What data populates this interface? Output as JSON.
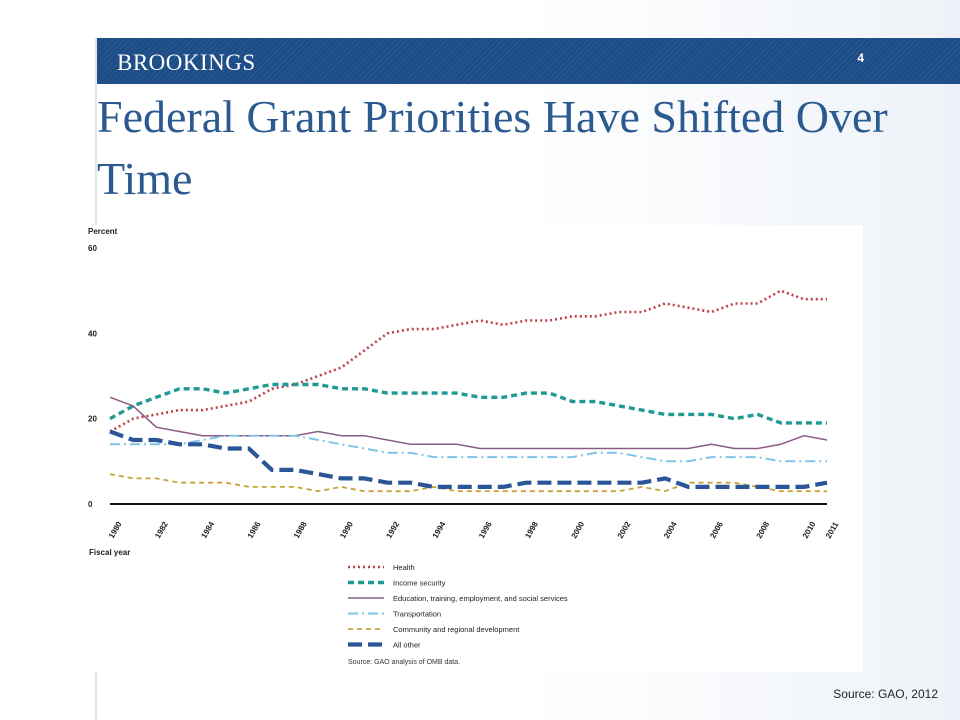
{
  "brand": "BROOKINGS",
  "slide_number": "4",
  "title": "Federal Grant Priorities Have Shifted Over Time",
  "source_note": "Source: GAO, 2012",
  "chart_data": {
    "type": "line",
    "title": "",
    "ylabel": "Percent",
    "xlabel": "Fiscal year",
    "ylim": [
      0,
      60
    ],
    "yticks": [
      0,
      20,
      40,
      60
    ],
    "xticks": [
      1980,
      1982,
      1984,
      1986,
      1988,
      1990,
      1992,
      1994,
      1996,
      1998,
      2000,
      2002,
      2004,
      2006,
      2008,
      2010,
      2011
    ],
    "x": [
      1980,
      1981,
      1982,
      1983,
      1984,
      1985,
      1986,
      1987,
      1988,
      1989,
      1990,
      1991,
      1992,
      1993,
      1994,
      1995,
      1996,
      1997,
      1998,
      1999,
      2000,
      2001,
      2002,
      2003,
      2004,
      2005,
      2006,
      2007,
      2008,
      2009,
      2010,
      2011
    ],
    "grid": false,
    "legend_position": "bottom",
    "source": "Source: GAO analysis of OMB data.",
    "series": [
      {
        "name": "Health",
        "color": "#c0404a",
        "dash": "dot",
        "values": [
          17,
          20,
          21,
          22,
          22,
          23,
          24,
          27,
          28,
          30,
          32,
          36,
          40,
          41,
          41,
          42,
          43,
          42,
          43,
          43,
          44,
          44,
          45,
          45,
          47,
          46,
          45,
          47,
          47,
          50,
          48,
          48
        ]
      },
      {
        "name": "Income security",
        "color": "#1f9a96",
        "dash": "dash",
        "values": [
          20,
          23,
          25,
          27,
          27,
          26,
          27,
          28,
          28,
          28,
          27,
          27,
          26,
          26,
          26,
          26,
          25,
          25,
          26,
          26,
          24,
          24,
          23,
          22,
          21,
          21,
          21,
          20,
          21,
          19,
          19,
          19
        ]
      },
      {
        "name": "Education, training, employment, and social services",
        "color": "#8a5a86",
        "dash": "solid",
        "values": [
          25,
          23,
          18,
          17,
          16,
          16,
          16,
          16,
          16,
          17,
          16,
          16,
          15,
          14,
          14,
          14,
          13,
          13,
          13,
          13,
          13,
          13,
          13,
          13,
          13,
          13,
          14,
          13,
          13,
          14,
          16,
          15
        ]
      },
      {
        "name": "Transportation",
        "color": "#7fc3e6",
        "dash": "dashdot",
        "values": [
          14,
          14,
          14,
          14,
          15,
          16,
          16,
          16,
          16,
          15,
          14,
          13,
          12,
          12,
          11,
          11,
          11,
          11,
          11,
          11,
          11,
          12,
          12,
          11,
          10,
          10,
          11,
          11,
          11,
          10,
          10,
          10
        ]
      },
      {
        "name": "Community and regional development",
        "color": "#c8a237",
        "dash": "dash-thin",
        "values": [
          7,
          6,
          6,
          5,
          5,
          5,
          4,
          4,
          4,
          3,
          4,
          3,
          3,
          3,
          4,
          3,
          3,
          3,
          3,
          3,
          3,
          3,
          3,
          4,
          3,
          5,
          5,
          5,
          4,
          3,
          3,
          3
        ]
      },
      {
        "name": "All other",
        "color": "#2a5596",
        "dash": "longdash",
        "values": [
          17,
          15,
          15,
          14,
          14,
          13,
          13,
          8,
          8,
          7,
          6,
          6,
          5,
          5,
          4,
          4,
          4,
          4,
          5,
          5,
          5,
          5,
          5,
          5,
          6,
          4,
          4,
          4,
          4,
          4,
          4,
          5
        ]
      }
    ]
  }
}
